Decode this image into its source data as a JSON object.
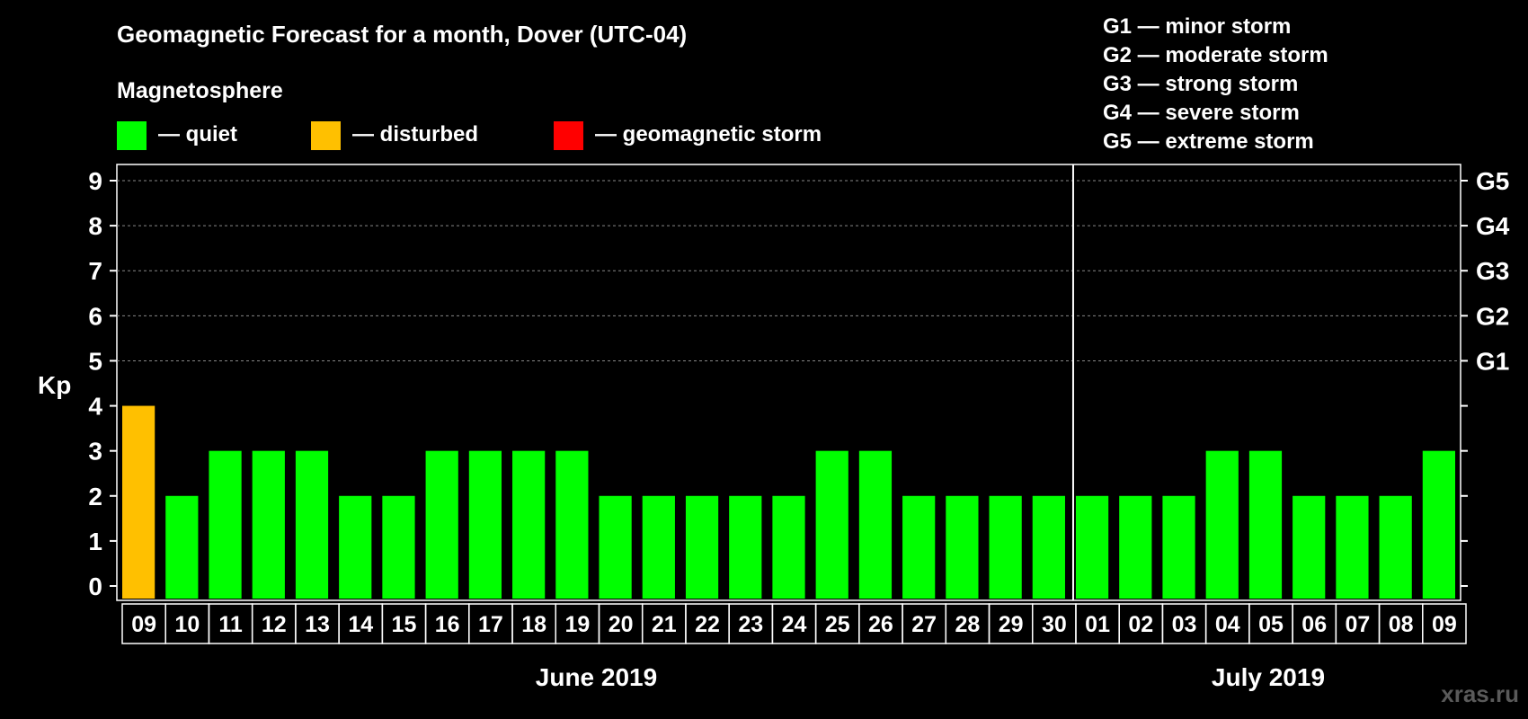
{
  "title": "Geomagnetic Forecast for a month, Dover (UTC-04)",
  "section_label": "Magnetosphere",
  "legend": [
    {
      "label": "— quiet",
      "color": "#00ff00"
    },
    {
      "label": "— disturbed",
      "color": "#ffc000"
    },
    {
      "label": "— geomagnetic storm",
      "color": "#ff0000"
    }
  ],
  "storm_levels": [
    {
      "label": "G1 — minor storm"
    },
    {
      "label": "G2 — moderate storm"
    },
    {
      "label": "G3 — strong storm"
    },
    {
      "label": "G4 — severe storm"
    },
    {
      "label": "G5 — extreme storm"
    }
  ],
  "watermark": "xras.ru",
  "colors": {
    "background": "#000000",
    "quiet": "#00ff00",
    "disturbed": "#ffc000",
    "storm": "#ff0000",
    "axis": "#ffffff",
    "grid": "#888888"
  },
  "chart_data": {
    "type": "bar",
    "ylabel": "Kp",
    "ylim": [
      0,
      9
    ],
    "yticks": [
      "0",
      "1",
      "2",
      "3",
      "4",
      "5",
      "6",
      "7",
      "8",
      "9"
    ],
    "right_ticks": [
      {
        "value": 5,
        "label": "G1"
      },
      {
        "value": 6,
        "label": "G2"
      },
      {
        "value": 7,
        "label": "G3"
      },
      {
        "value": 8,
        "label": "G4"
      },
      {
        "value": 9,
        "label": "G5"
      }
    ],
    "grid": true,
    "categories": [
      "09",
      "10",
      "11",
      "12",
      "13",
      "14",
      "15",
      "16",
      "17",
      "18",
      "19",
      "20",
      "21",
      "22",
      "23",
      "24",
      "25",
      "26",
      "27",
      "28",
      "29",
      "30",
      "01",
      "02",
      "03",
      "04",
      "05",
      "06",
      "07",
      "08",
      "09"
    ],
    "values": [
      4,
      2,
      3,
      3,
      3,
      2,
      2,
      3,
      3,
      3,
      3,
      2,
      2,
      2,
      2,
      2,
      3,
      3,
      2,
      2,
      2,
      2,
      2,
      2,
      2,
      3,
      3,
      2,
      2,
      2,
      3
    ],
    "bar_status": [
      "disturbed",
      "quiet",
      "quiet",
      "quiet",
      "quiet",
      "quiet",
      "quiet",
      "quiet",
      "quiet",
      "quiet",
      "quiet",
      "quiet",
      "quiet",
      "quiet",
      "quiet",
      "quiet",
      "quiet",
      "quiet",
      "quiet",
      "quiet",
      "quiet",
      "quiet",
      "quiet",
      "quiet",
      "quiet",
      "quiet",
      "quiet",
      "quiet",
      "quiet",
      "quiet",
      "quiet"
    ],
    "month_groups": [
      {
        "label": "June 2019",
        "start_index": 0,
        "count": 22
      },
      {
        "label": "July 2019",
        "start_index": 22,
        "count": 9
      }
    ]
  }
}
